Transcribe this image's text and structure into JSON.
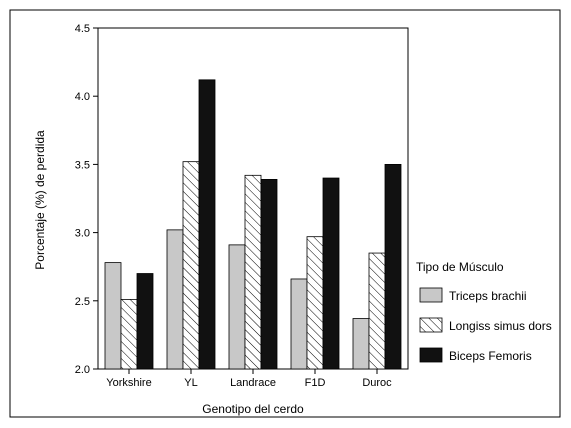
{
  "chart_data": {
    "type": "bar",
    "title": "",
    "xlabel": "Genotipo del cerdo",
    "ylabel": "Porcentaje (%) de perdida",
    "ylim": [
      2.0,
      4.5
    ],
    "yticks": [
      "2.0",
      "2.5",
      "3.0",
      "3.5",
      "4.0",
      "4.5"
    ],
    "categories": [
      "Yorkshire",
      "YL",
      "Landrace",
      "F1D",
      "Duroc"
    ],
    "legend_title": "Tipo de Músculo",
    "legend_position": "right",
    "grid": false,
    "series": [
      {
        "name": "Triceps brachii",
        "fill": "#c8c8c8",
        "pattern": "solid",
        "values": [
          2.78,
          3.02,
          2.91,
          2.66,
          2.37
        ]
      },
      {
        "name": "Longiss simus dors",
        "fill": "#ffffff",
        "pattern": "hatch",
        "values": [
          2.51,
          3.52,
          3.42,
          2.97,
          2.85
        ]
      },
      {
        "name": "Biceps Femoris",
        "fill": "#111111",
        "pattern": "solid",
        "values": [
          2.7,
          4.12,
          3.39,
          3.4,
          3.5
        ]
      }
    ]
  }
}
